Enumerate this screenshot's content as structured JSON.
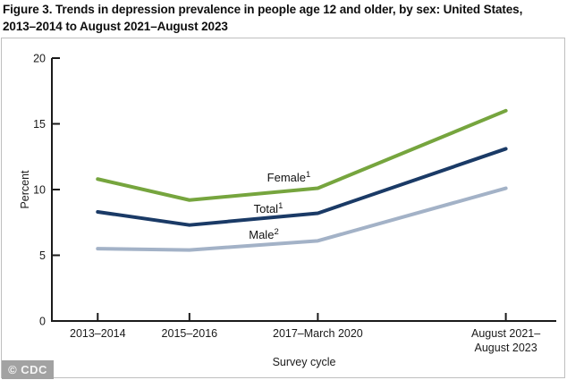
{
  "title": {
    "line1": "Figure 3. Trends in depression prevalence in people age 12 and older, by sex: United States,",
    "line2": "2013–2014 to August 2021–August 2023"
  },
  "credit_badge": "© CDC",
  "chart_data": {
    "type": "line",
    "title": "Figure 3. Trends in depression prevalence in people age 12 and older, by sex: United States, 2013–2014 to August 2021–August 2023",
    "xlabel": "Survey cycle",
    "ylabel": "Percent",
    "ylim": [
      0,
      20
    ],
    "yticks": [
      0,
      5,
      10,
      15,
      20
    ],
    "ytick_labels": [
      "0",
      "5",
      "10",
      "15",
      "20"
    ],
    "grid": false,
    "legend": "inline-labels",
    "categories": [
      "2013–2014",
      "2015–2016",
      "2017–March 2020",
      "August 2021–August 2023"
    ],
    "xtick_labels": [
      {
        "lines": [
          "2013–2014",
          ""
        ]
      },
      {
        "lines": [
          "2015–2016",
          ""
        ]
      },
      {
        "lines": [
          "2017–March 2020",
          ""
        ]
      },
      {
        "lines": [
          "August 2021–",
          "August 2023"
        ]
      }
    ],
    "x_numeric": [
      2014,
      2016,
      2018.8,
      2022.9
    ],
    "xlim": [
      2013,
      2024
    ],
    "series": [
      {
        "name": "Female",
        "sup": "1",
        "color": "#76A53E",
        "values": [
          10.8,
          9.2,
          10.1,
          16.0
        ]
      },
      {
        "name": "Total",
        "sup": "1",
        "color": "#1A3A66",
        "values": [
          8.3,
          7.3,
          8.2,
          13.1
        ]
      },
      {
        "name": "Male",
        "sup": "2",
        "color": "#A3B2C7",
        "values": [
          5.5,
          5.4,
          6.1,
          10.1
        ]
      }
    ]
  }
}
